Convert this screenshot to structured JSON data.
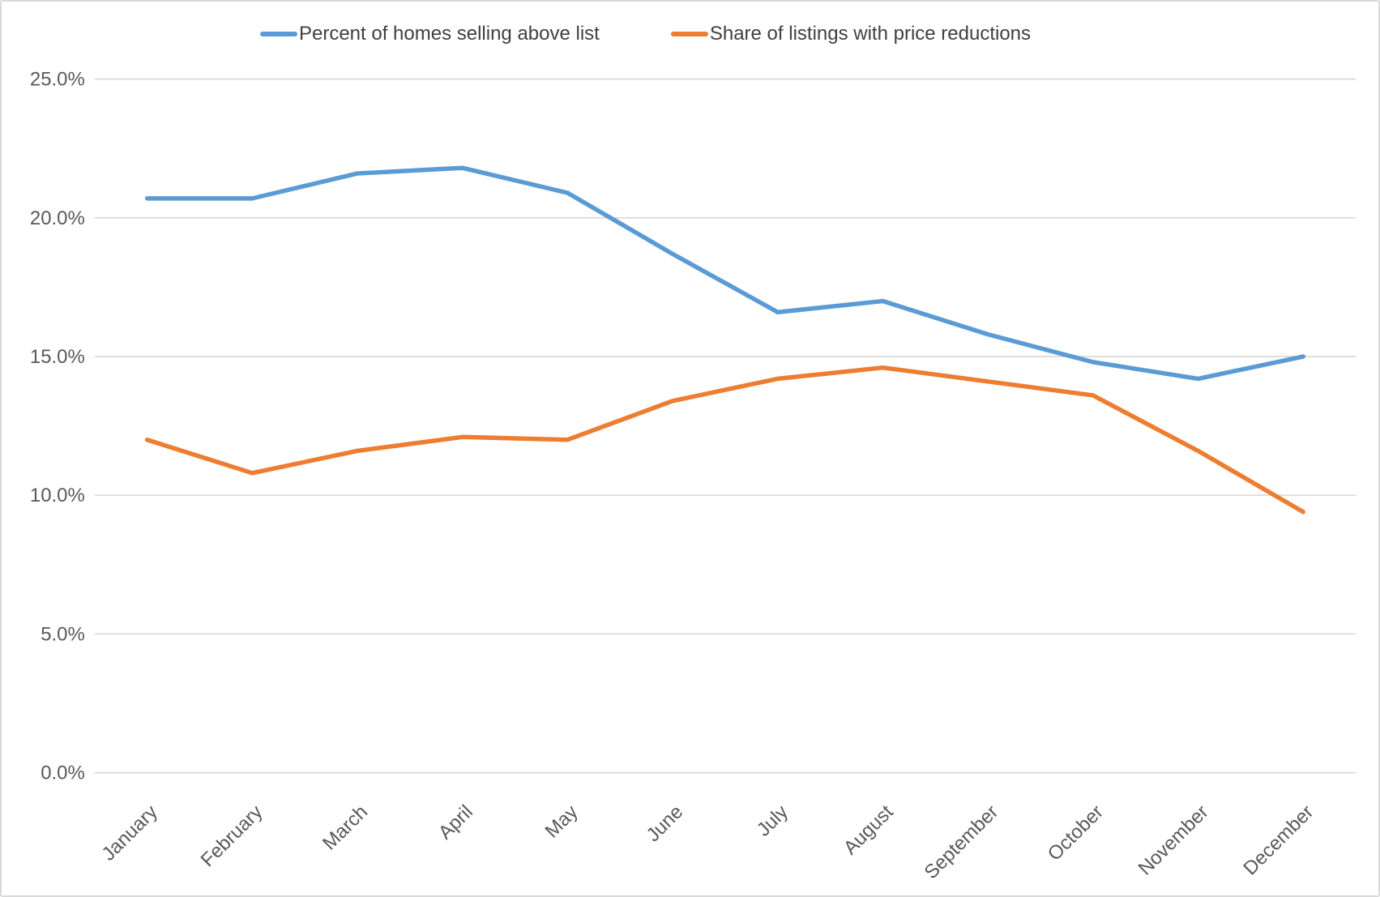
{
  "chart_data": {
    "type": "line",
    "title": "",
    "xlabel": "",
    "ylabel": "",
    "categories": [
      "January",
      "February",
      "March",
      "April",
      "May",
      "June",
      "July",
      "August",
      "September",
      "October",
      "November",
      "December"
    ],
    "series": [
      {
        "name": "Percent of homes selling above list",
        "color": "#5B9BD5",
        "values": [
          20.7,
          20.7,
          21.6,
          21.8,
          20.9,
          18.7,
          16.6,
          17.0,
          15.8,
          14.8,
          14.2,
          15.0
        ]
      },
      {
        "name": "Share of listings with price reductions",
        "color": "#ED7D31",
        "values": [
          12.0,
          10.8,
          11.6,
          12.1,
          12.0,
          13.4,
          14.2,
          14.6,
          14.1,
          13.6,
          11.6,
          9.4
        ]
      }
    ],
    "ylim": [
      0,
      25
    ],
    "yticks": [
      {
        "value": 0,
        "label": "0.0%"
      },
      {
        "value": 5,
        "label": "5.0%"
      },
      {
        "value": 10,
        "label": "10.0%"
      },
      {
        "value": 15,
        "label": "15.0%"
      },
      {
        "value": 20,
        "label": "20.0%"
      },
      {
        "value": 25,
        "label": "25.0%"
      }
    ],
    "grid": true,
    "legend_position": "top"
  },
  "colors": {
    "background": "#FFFFFF",
    "gridline": "#D9D9D9",
    "axis_text": "#595959",
    "legend_text": "#404040",
    "border": "#D9D9D9"
  }
}
